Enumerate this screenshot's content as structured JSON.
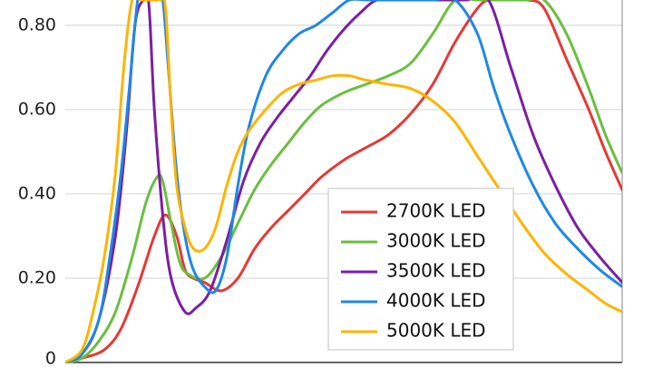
{
  "chart_data": {
    "type": "line",
    "title": "",
    "xlabel": "",
    "ylabel": "",
    "ylim": [
      0,
      0.86
    ],
    "xlim": [
      0,
      1
    ],
    "y_ticks": [
      "0",
      "0.20",
      "0.40",
      "0.60",
      "0.80"
    ],
    "y_tick_values": [
      0,
      0.2,
      0.4,
      0.6,
      0.8
    ],
    "grid": "horizontal",
    "legend_position": "lower-center",
    "series": [
      {
        "name": "2700K LED",
        "color": "#e53935",
        "x": [
          0.0,
          0.03,
          0.07,
          0.1,
          0.13,
          0.16,
          0.18,
          0.2,
          0.215,
          0.23,
          0.25,
          0.28,
          0.31,
          0.34,
          0.37,
          0.4,
          0.43,
          0.46,
          0.5,
          0.54,
          0.58,
          0.62,
          0.66,
          0.7,
          0.74,
          0.76,
          0.78,
          0.8,
          0.83,
          0.86,
          0.9,
          0.94,
          0.97,
          1.0
        ],
        "values": [
          0.0,
          0.01,
          0.03,
          0.08,
          0.18,
          0.3,
          0.35,
          0.3,
          0.22,
          0.2,
          0.19,
          0.17,
          0.2,
          0.27,
          0.32,
          0.36,
          0.4,
          0.44,
          0.48,
          0.51,
          0.54,
          0.59,
          0.66,
          0.76,
          0.84,
          0.86,
          0.86,
          0.86,
          0.86,
          0.84,
          0.72,
          0.6,
          0.5,
          0.41
        ]
      },
      {
        "name": "3000K LED",
        "color": "#6abf3e",
        "x": [
          0.0,
          0.03,
          0.06,
          0.09,
          0.12,
          0.145,
          0.165,
          0.175,
          0.19,
          0.205,
          0.22,
          0.25,
          0.28,
          0.31,
          0.34,
          0.37,
          0.4,
          0.43,
          0.46,
          0.5,
          0.54,
          0.58,
          0.62,
          0.66,
          0.7,
          0.74,
          0.8,
          0.83,
          0.86,
          0.9,
          0.94,
          0.97,
          1.0
        ],
        "values": [
          0.0,
          0.01,
          0.05,
          0.12,
          0.25,
          0.38,
          0.44,
          0.43,
          0.33,
          0.24,
          0.21,
          0.2,
          0.25,
          0.33,
          0.41,
          0.47,
          0.52,
          0.57,
          0.61,
          0.64,
          0.66,
          0.68,
          0.71,
          0.78,
          0.86,
          0.86,
          0.86,
          0.86,
          0.86,
          0.78,
          0.65,
          0.54,
          0.45
        ]
      },
      {
        "name": "3500K LED",
        "color": "#7b1fa2",
        "x": [
          0.0,
          0.03,
          0.06,
          0.09,
          0.11,
          0.125,
          0.14,
          0.15,
          0.16,
          0.175,
          0.19,
          0.215,
          0.235,
          0.26,
          0.29,
          0.32,
          0.35,
          0.38,
          0.41,
          0.44,
          0.47,
          0.5,
          0.53,
          0.56,
          0.6,
          0.64,
          0.68,
          0.72,
          0.76,
          0.8,
          0.84,
          0.88,
          0.92,
          0.96,
          1.0
        ],
        "values": [
          0.0,
          0.02,
          0.1,
          0.3,
          0.55,
          0.8,
          0.86,
          0.85,
          0.6,
          0.35,
          0.2,
          0.12,
          0.13,
          0.17,
          0.29,
          0.43,
          0.52,
          0.58,
          0.63,
          0.68,
          0.74,
          0.79,
          0.83,
          0.86,
          0.86,
          0.86,
          0.86,
          0.86,
          0.86,
          0.7,
          0.54,
          0.42,
          0.32,
          0.25,
          0.19
        ]
      },
      {
        "name": "4000K LED",
        "color": "#1e88e5",
        "x": [
          0.0,
          0.03,
          0.06,
          0.08,
          0.1,
          0.115,
          0.13,
          0.14,
          0.155,
          0.165,
          0.175,
          0.185,
          0.2,
          0.215,
          0.23,
          0.25,
          0.27,
          0.29,
          0.31,
          0.33,
          0.36,
          0.39,
          0.42,
          0.45,
          0.48,
          0.51,
          0.54,
          0.58,
          0.62,
          0.66,
          0.7,
          0.74,
          0.77,
          0.8,
          0.84,
          0.88,
          0.92,
          0.96,
          1.0
        ],
        "values": [
          0.0,
          0.02,
          0.1,
          0.25,
          0.45,
          0.65,
          0.86,
          0.86,
          0.86,
          0.86,
          0.86,
          0.7,
          0.45,
          0.3,
          0.22,
          0.18,
          0.17,
          0.25,
          0.42,
          0.56,
          0.68,
          0.74,
          0.78,
          0.8,
          0.83,
          0.86,
          0.86,
          0.86,
          0.86,
          0.86,
          0.86,
          0.78,
          0.65,
          0.54,
          0.42,
          0.33,
          0.27,
          0.22,
          0.18
        ]
      },
      {
        "name": "5000K LED",
        "color": "#ffb300",
        "x": [
          0.0,
          0.03,
          0.05,
          0.07,
          0.09,
          0.105,
          0.12,
          0.135,
          0.15,
          0.16,
          0.17,
          0.18,
          0.19,
          0.2,
          0.215,
          0.23,
          0.25,
          0.27,
          0.29,
          0.31,
          0.33,
          0.36,
          0.39,
          0.42,
          0.45,
          0.48,
          0.51,
          0.54,
          0.58,
          0.62,
          0.66,
          0.7,
          0.74,
          0.78,
          0.82,
          0.86,
          0.9,
          0.94,
          0.97,
          1.0
        ],
        "values": [
          0.0,
          0.03,
          0.12,
          0.25,
          0.45,
          0.7,
          0.86,
          0.86,
          0.86,
          0.86,
          0.86,
          0.84,
          0.6,
          0.42,
          0.32,
          0.27,
          0.27,
          0.32,
          0.42,
          0.5,
          0.55,
          0.6,
          0.64,
          0.66,
          0.67,
          0.68,
          0.68,
          0.67,
          0.66,
          0.65,
          0.62,
          0.57,
          0.49,
          0.41,
          0.33,
          0.26,
          0.21,
          0.17,
          0.14,
          0.12
        ]
      }
    ]
  }
}
